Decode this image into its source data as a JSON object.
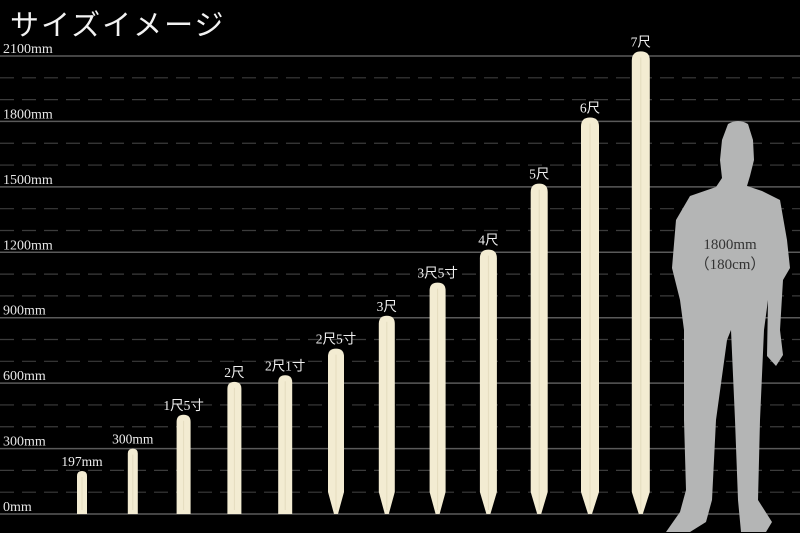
{
  "title": "サイズイメージ",
  "chart_data": {
    "type": "bar",
    "title": "サイズイメージ",
    "xlabel": "",
    "ylabel": "",
    "ylim": [
      0,
      2100
    ],
    "yticks": [
      0,
      300,
      600,
      900,
      1200,
      1500,
      1800,
      2100
    ],
    "ytick_labels": [
      "0mm",
      "300mm",
      "600mm",
      "900mm",
      "1200mm",
      "1500mm",
      "1800mm",
      "2100mm"
    ],
    "minor_grid_step": 100,
    "grid": true,
    "categories": [
      "197mm",
      "300mm",
      "1尺5寸",
      "2尺",
      "2尺1寸",
      "2尺5寸",
      "3尺",
      "3尺5寸",
      "4尺",
      "5尺",
      "6尺",
      "7尺"
    ],
    "values": [
      197,
      300,
      455,
      606,
      636,
      758,
      909,
      1061,
      1212,
      1515,
      1818,
      2121
    ],
    "pointed_tip": [
      false,
      false,
      false,
      false,
      false,
      true,
      true,
      true,
      true,
      true,
      true,
      true
    ],
    "bar_color": "#f3ecd2",
    "reference": {
      "label_line1": "1800mm",
      "label_line2": "（180cm）",
      "value": 1800,
      "color": "#b4b5b5"
    }
  }
}
